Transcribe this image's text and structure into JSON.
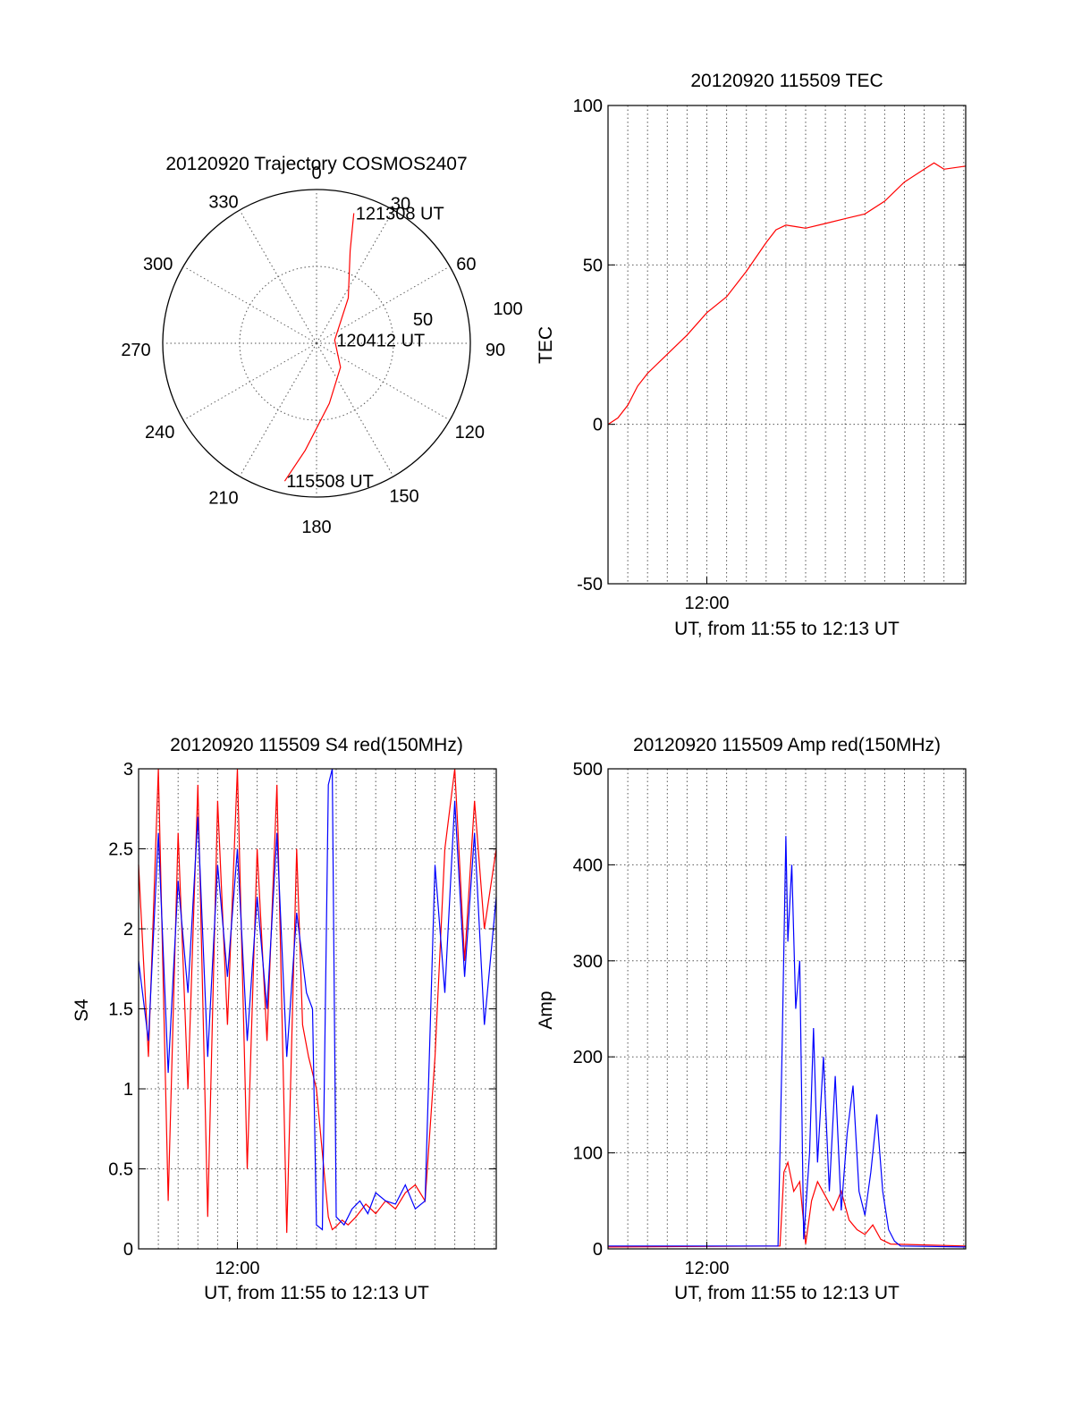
{
  "colors": {
    "red": "#ff0000",
    "blue": "#0000ff",
    "axis": "#000000"
  },
  "chart_data": [
    {
      "id": "trajectory",
      "type": "scatter",
      "subtype": "polar",
      "title": "20120920 Trajectory COSMOS2407",
      "angle_labels": [
        "0",
        "30",
        "60",
        "90",
        "120",
        "150",
        "180",
        "210",
        "240",
        "270",
        "300",
        "330"
      ],
      "radius_labels": [
        "50",
        "100"
      ],
      "rmax": 100,
      "grid": true,
      "points": [
        {
          "az": 193,
          "r": 92
        },
        {
          "az": 186,
          "r": 70
        },
        {
          "az": 168,
          "r": 40
        },
        {
          "az": 135,
          "r": 22
        },
        {
          "az": 80,
          "r": 12
        },
        {
          "az": 35,
          "r": 36
        },
        {
          "az": 20,
          "r": 64
        },
        {
          "az": 16,
          "r": 88
        }
      ],
      "annotations": [
        {
          "text": "121308 UT",
          "az": 16,
          "r": 88
        },
        {
          "text": "120412 UT",
          "az": 80,
          "r": 12
        },
        {
          "text": "115508 UT",
          "az": 193,
          "r": 92
        }
      ],
      "color": "#ff0000"
    },
    {
      "id": "tec",
      "type": "line",
      "title": "20120920 115509 TEC",
      "xlabel": "UT, from 11:55 to 12:13 UT",
      "ylabel": "TEC",
      "x_tick_labels": [
        {
          "x": 5,
          "label": "12:00"
        }
      ],
      "xlim": [
        0,
        18.1
      ],
      "ylim": [
        -50,
        100
      ],
      "yticks": [
        -50,
        0,
        50,
        100
      ],
      "grid": true,
      "series": [
        {
          "color": "#ff0000",
          "x": [
            0,
            0.5,
            1,
            1.5,
            2,
            3,
            4,
            5,
            6,
            7,
            8,
            8.5,
            9,
            9.5,
            10,
            11,
            12,
            13,
            14,
            15,
            16,
            16.5,
            17,
            18.1
          ],
          "y": [
            0,
            2,
            6,
            12,
            16,
            22,
            28,
            35,
            40,
            48,
            57,
            61,
            62.5,
            62,
            61.5,
            63,
            64.5,
            66,
            70,
            76,
            80,
            82,
            80,
            81
          ]
        }
      ]
    },
    {
      "id": "s4",
      "type": "line",
      "title": "20120920 115509 S4 red(150MHz)",
      "xlabel": "UT, from 11:55 to 12:13 UT",
      "ylabel": "S4",
      "x_tick_labels": [
        {
          "x": 5,
          "label": "12:00"
        }
      ],
      "xlim": [
        0,
        18.1
      ],
      "ylim": [
        0,
        3
      ],
      "yticks": [
        "0",
        "0.5",
        "1",
        "1.5",
        "2",
        "2.5",
        "3"
      ],
      "grid": true,
      "series": [
        {
          "color": "#ff0000",
          "x": [
            0,
            0.5,
            1,
            1.5,
            2,
            2.5,
            3,
            3.5,
            4,
            4.5,
            5,
            5.5,
            6,
            6.5,
            7,
            7.5,
            8,
            8.3,
            8.6,
            9,
            9.3,
            9.6,
            9.8,
            10,
            10.3,
            10.6,
            11,
            11.5,
            12,
            12.5,
            13,
            13.5,
            14,
            14.5,
            15,
            15.5,
            16,
            16.5,
            17,
            17.5,
            18.1
          ],
          "y": [
            2.4,
            1.2,
            3.0,
            0.3,
            2.6,
            1.0,
            2.9,
            0.2,
            2.8,
            1.4,
            3.0,
            0.5,
            2.5,
            1.3,
            2.9,
            0.1,
            2.5,
            1.4,
            1.2,
            1.0,
            0.6,
            0.2,
            0.12,
            0.14,
            0.18,
            0.15,
            0.2,
            0.28,
            0.22,
            0.3,
            0.25,
            0.35,
            0.4,
            0.3,
            1.2,
            2.5,
            3.0,
            1.8,
            2.8,
            2.0,
            2.5
          ]
        },
        {
          "color": "#0000ff",
          "x": [
            0,
            0.5,
            1,
            1.5,
            2,
            2.5,
            3,
            3.5,
            4,
            4.5,
            5,
            5.5,
            6,
            6.5,
            7,
            7.5,
            8,
            8.5,
            8.8,
            9,
            9.3,
            9.6,
            9.8,
            10,
            10.4,
            10.8,
            11.2,
            11.6,
            12,
            12.5,
            13,
            13.5,
            14,
            14.5,
            15,
            15.5,
            16,
            16.5,
            17,
            17.5,
            18.1
          ],
          "y": [
            1.8,
            1.3,
            2.6,
            1.1,
            2.3,
            1.6,
            2.7,
            1.2,
            2.4,
            1.7,
            2.5,
            1.3,
            2.2,
            1.5,
            2.6,
            1.2,
            2.1,
            1.6,
            1.5,
            0.15,
            0.12,
            2.9,
            3.0,
            0.2,
            0.15,
            0.25,
            0.3,
            0.22,
            0.35,
            0.3,
            0.28,
            0.4,
            0.25,
            0.3,
            2.4,
            1.6,
            2.8,
            1.7,
            2.6,
            1.4,
            2.2
          ]
        }
      ]
    },
    {
      "id": "amp",
      "type": "line",
      "title": "20120920 115509 Amp red(150MHz)",
      "xlabel": "UT, from 11:55 to 12:13 UT",
      "ylabel": "Amp",
      "x_tick_labels": [
        {
          "x": 5,
          "label": "12:00"
        }
      ],
      "xlim": [
        0,
        18.1
      ],
      "ylim": [
        0,
        500
      ],
      "yticks": [
        0,
        100,
        200,
        300,
        400,
        500
      ],
      "grid": true,
      "series": [
        {
          "color": "#ff0000",
          "x": [
            0,
            8.7,
            8.9,
            9.1,
            9.4,
            9.7,
            10,
            10.3,
            10.6,
            11,
            11.4,
            11.8,
            12.2,
            12.6,
            13,
            13.4,
            13.8,
            14.3,
            18.1
          ],
          "y": [
            2,
            3,
            80,
            90,
            60,
            70,
            5,
            50,
            70,
            55,
            40,
            60,
            30,
            20,
            15,
            25,
            10,
            5,
            3
          ]
        },
        {
          "color": "#0000ff",
          "x": [
            0,
            8.6,
            8.8,
            9.0,
            9.1,
            9.3,
            9.5,
            9.7,
            9.9,
            10.2,
            10.4,
            10.6,
            10.9,
            11.2,
            11.5,
            11.8,
            12.1,
            12.4,
            12.7,
            13.0,
            13.3,
            13.6,
            13.9,
            14.2,
            14.5,
            14.8,
            18.1
          ],
          "y": [
            3,
            3,
            200,
            430,
            320,
            400,
            250,
            300,
            10,
            100,
            230,
            90,
            200,
            60,
            180,
            40,
            120,
            170,
            60,
            35,
            80,
            140,
            60,
            20,
            8,
            3,
            2
          ]
        }
      ]
    }
  ]
}
